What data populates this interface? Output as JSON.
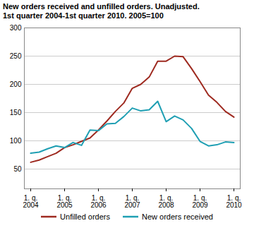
{
  "chart_data": {
    "type": "line",
    "title": "New orders received and unfilled orders. Unadjusted.",
    "subtitle": "1st quarter 2004-1st quarter 2010. 2005=100",
    "categories": [
      "1. q.\n2004",
      null,
      null,
      null,
      "1. q.\n2005",
      null,
      null,
      null,
      "1. q.\n2006",
      null,
      null,
      null,
      "1. q.\n2007",
      null,
      null,
      null,
      "1. q.\n2008",
      null,
      null,
      null,
      "1. q.\n2009",
      null,
      null,
      null,
      "1. q.\n2010"
    ],
    "series": [
      {
        "name": "Unfilled orders",
        "color": "#9e2a20",
        "values": [
          62,
          66,
          72,
          78,
          88,
          93,
          99,
          105,
          119,
          135,
          152,
          167,
          193,
          200,
          213,
          241,
          241,
          250,
          249,
          228,
          205,
          181,
          168,
          152,
          142
        ]
      },
      {
        "name": "New orders received",
        "color": "#1f9fb3",
        "values": [
          78,
          80,
          86,
          91,
          88,
          97,
          92,
          119,
          118,
          130,
          131,
          143,
          158,
          153,
          155,
          170,
          134,
          144,
          137,
          122,
          99,
          91,
          93,
          98,
          97
        ]
      }
    ],
    "ylim": [
      15,
      300
    ],
    "yticks": [
      50,
      100,
      150,
      200,
      250,
      300
    ],
    "grid": true,
    "legend": "bottom"
  }
}
